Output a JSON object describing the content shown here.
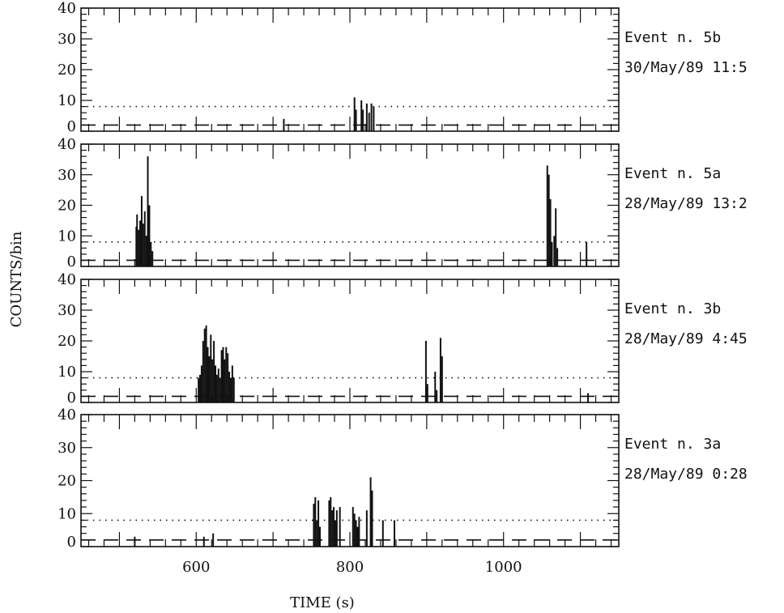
{
  "chart_data": {
    "type": "bar",
    "xlabel": "TIME (s)",
    "ylabel": "COUNTS/bin",
    "xlim": [
      450,
      1150
    ],
    "ylim": [
      0,
      40
    ],
    "x_ticks": [
      600,
      800,
      1000
    ],
    "y_ticks": [
      0,
      10,
      20,
      30,
      40
    ],
    "threshold_dotted": 8,
    "background_dashed": 2,
    "panels": [
      {
        "event": "Event n. 5b",
        "date": "30/May/89 11:5",
        "bars": [
          {
            "x": 714,
            "y": 4
          },
          {
            "x": 806,
            "y": 11
          },
          {
            "x": 808,
            "y": 7
          },
          {
            "x": 815,
            "y": 10
          },
          {
            "x": 817,
            "y": 7
          },
          {
            "x": 822,
            "y": 9
          },
          {
            "x": 825,
            "y": 6
          },
          {
            "x": 828,
            "y": 9
          },
          {
            "x": 831,
            "y": 8
          }
        ]
      },
      {
        "event": "Event n. 5a",
        "date": "28/May/89 13:2",
        "bars": [
          {
            "x": 522,
            "y": 13
          },
          {
            "x": 523,
            "y": 17
          },
          {
            "x": 525,
            "y": 12
          },
          {
            "x": 527,
            "y": 15
          },
          {
            "x": 529,
            "y": 23
          },
          {
            "x": 531,
            "y": 14
          },
          {
            "x": 533,
            "y": 18
          },
          {
            "x": 535,
            "y": 10
          },
          {
            "x": 537,
            "y": 36
          },
          {
            "x": 539,
            "y": 20
          },
          {
            "x": 541,
            "y": 8
          },
          {
            "x": 543,
            "y": 5
          },
          {
            "x": 1057,
            "y": 33
          },
          {
            "x": 1059,
            "y": 30
          },
          {
            "x": 1061,
            "y": 22
          },
          {
            "x": 1063,
            "y": 8
          },
          {
            "x": 1066,
            "y": 10
          },
          {
            "x": 1068,
            "y": 19
          },
          {
            "x": 1070,
            "y": 6
          },
          {
            "x": 1108,
            "y": 8
          }
        ]
      },
      {
        "event": "Event n. 3b",
        "date": "28/May/89 4:45",
        "bars": [
          {
            "x": 603,
            "y": 8
          },
          {
            "x": 605,
            "y": 9
          },
          {
            "x": 607,
            "y": 12
          },
          {
            "x": 609,
            "y": 20
          },
          {
            "x": 611,
            "y": 24
          },
          {
            "x": 613,
            "y": 25
          },
          {
            "x": 615,
            "y": 18
          },
          {
            "x": 617,
            "y": 15
          },
          {
            "x": 619,
            "y": 22
          },
          {
            "x": 621,
            "y": 14
          },
          {
            "x": 623,
            "y": 20
          },
          {
            "x": 625,
            "y": 12
          },
          {
            "x": 627,
            "y": 9
          },
          {
            "x": 629,
            "y": 11
          },
          {
            "x": 631,
            "y": 8
          },
          {
            "x": 633,
            "y": 17
          },
          {
            "x": 635,
            "y": 18
          },
          {
            "x": 637,
            "y": 14
          },
          {
            "x": 639,
            "y": 18
          },
          {
            "x": 641,
            "y": 16
          },
          {
            "x": 643,
            "y": 10
          },
          {
            "x": 645,
            "y": 8
          },
          {
            "x": 647,
            "y": 12
          },
          {
            "x": 649,
            "y": 8
          },
          {
            "x": 899,
            "y": 20
          },
          {
            "x": 901,
            "y": 6
          },
          {
            "x": 911,
            "y": 10
          },
          {
            "x": 913,
            "y": 4
          },
          {
            "x": 918,
            "y": 21
          },
          {
            "x": 920,
            "y": 15
          },
          {
            "x": 1110,
            "y": 3
          }
        ]
      },
      {
        "event": "Event n. 3a",
        "date": "28/May/89 0:28",
        "bars": [
          {
            "x": 520,
            "y": 3
          },
          {
            "x": 610,
            "y": 3
          },
          {
            "x": 622,
            "y": 4
          },
          {
            "x": 753,
            "y": 13
          },
          {
            "x": 755,
            "y": 15
          },
          {
            "x": 757,
            "y": 8
          },
          {
            "x": 759,
            "y": 14
          },
          {
            "x": 761,
            "y": 6
          },
          {
            "x": 773,
            "y": 14
          },
          {
            "x": 775,
            "y": 15
          },
          {
            "x": 777,
            "y": 11
          },
          {
            "x": 779,
            "y": 12
          },
          {
            "x": 781,
            "y": 8
          },
          {
            "x": 783,
            "y": 11
          },
          {
            "x": 787,
            "y": 12
          },
          {
            "x": 804,
            "y": 12
          },
          {
            "x": 806,
            "y": 10
          },
          {
            "x": 808,
            "y": 8
          },
          {
            "x": 810,
            "y": 6
          },
          {
            "x": 812,
            "y": 9
          },
          {
            "x": 822,
            "y": 11
          },
          {
            "x": 827,
            "y": 21
          },
          {
            "x": 829,
            "y": 17
          },
          {
            "x": 843,
            "y": 8
          },
          {
            "x": 858,
            "y": 8
          }
        ]
      }
    ]
  }
}
